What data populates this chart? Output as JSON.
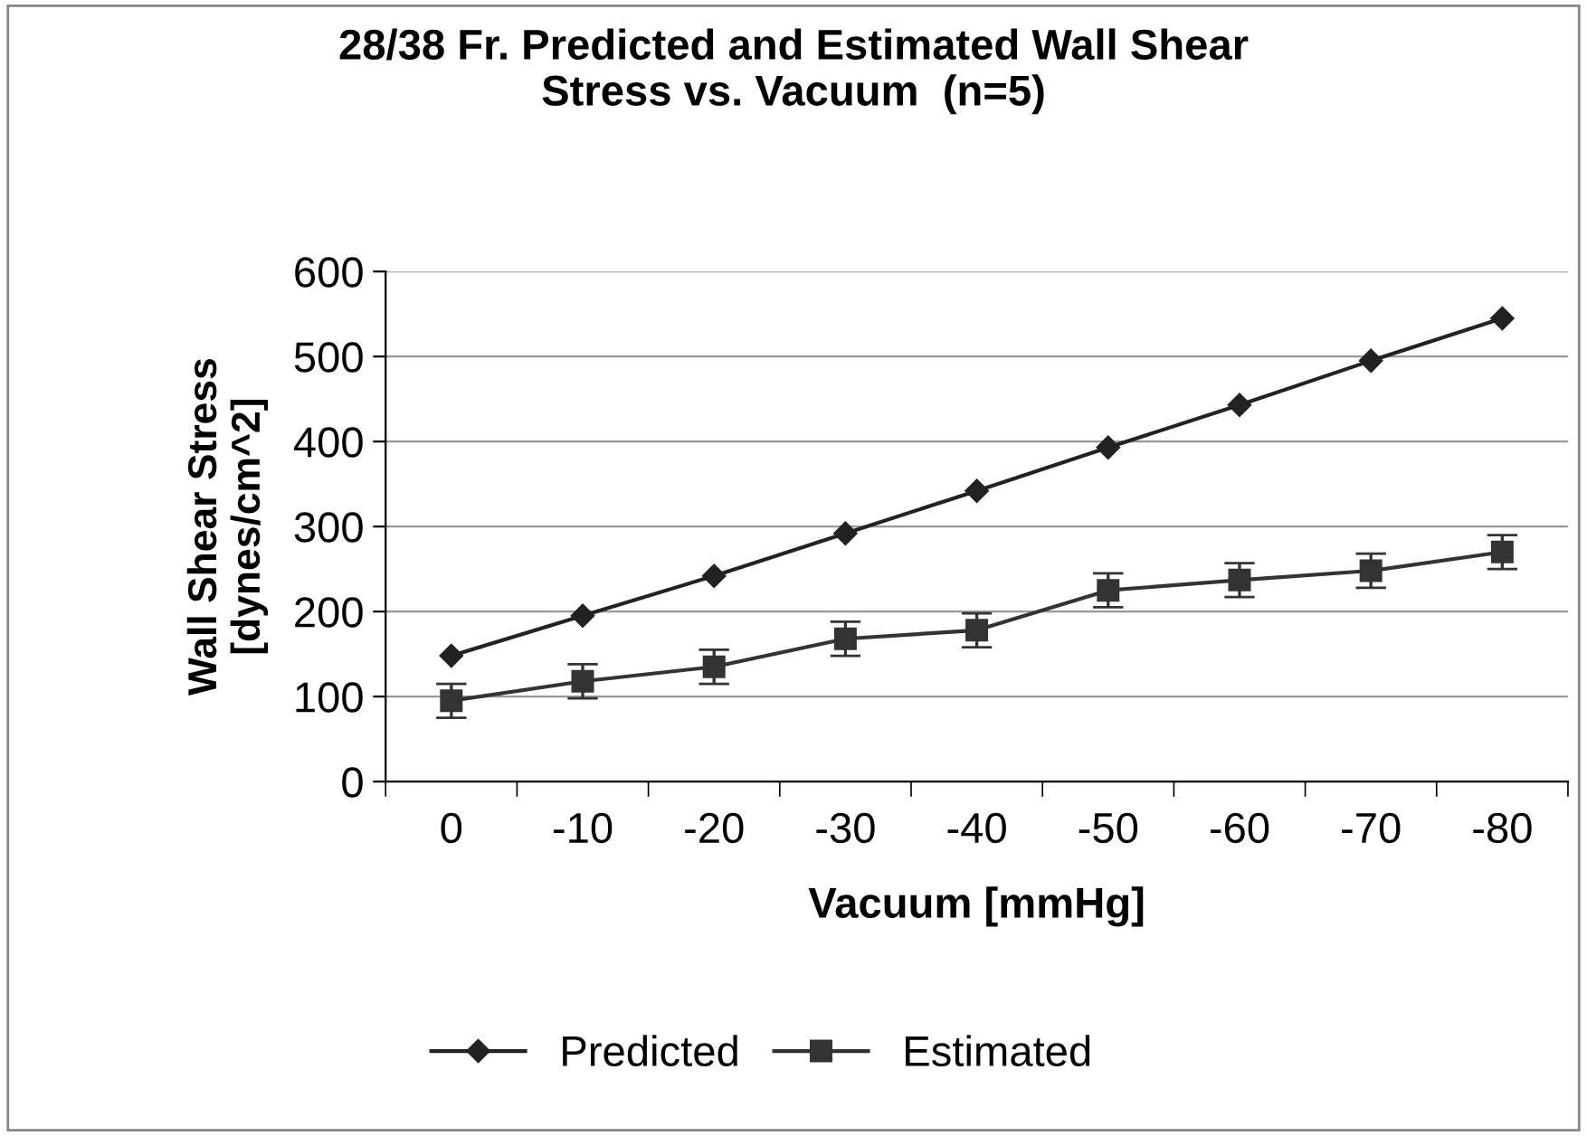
{
  "chart_data": {
    "type": "line",
    "title": "28/38 Fr. Predicted and Estimated Wall Shear\nStress vs. Vacuum  (n=5)",
    "xlabel": "Vacuum [mmHg]",
    "ylabel": "Wall Shear Stress\n[dynes/cm^2]",
    "categories": [
      "0",
      "-10",
      "-20",
      "-30",
      "-40",
      "-50",
      "-60",
      "-70",
      "-80"
    ],
    "series": [
      {
        "name": "Predicted",
        "color": "#222222",
        "marker": "diamond",
        "values": [
          148,
          195,
          242,
          292,
          342,
          393,
          443,
          495,
          545
        ]
      },
      {
        "name": "Estimated",
        "color": "#333333",
        "marker": "square",
        "values": [
          95,
          118,
          135,
          168,
          178,
          225,
          237,
          248,
          270
        ],
        "errors": [
          20,
          20,
          20,
          20,
          20,
          20,
          20,
          20,
          20
        ]
      }
    ],
    "ylim": [
      0,
      600
    ],
    "yticks": [
      0,
      100,
      200,
      300,
      400,
      500,
      600
    ],
    "grid": "y",
    "legend": "bottom"
  }
}
